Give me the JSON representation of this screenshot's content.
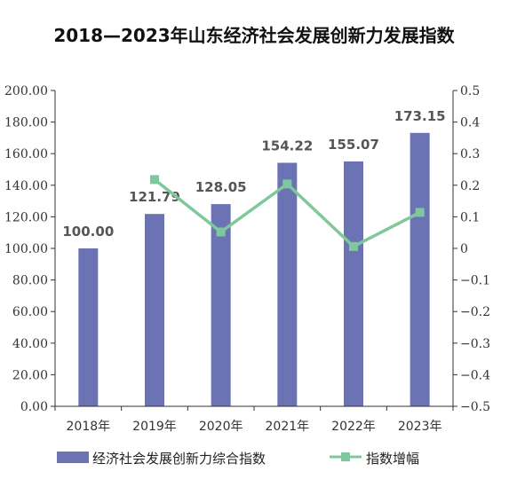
{
  "chart_data": {
    "type": "bar",
    "title": "2018—2023年山东经济社会发展创新力发展指数",
    "categories": [
      "2018年",
      "2019年",
      "2020年",
      "2021年",
      "2022年",
      "2023年"
    ],
    "series": [
      {
        "name": "经济社会发展创新力综合指数",
        "type": "bar",
        "axis": "left",
        "color": "#6b73b5",
        "values": [
          100.0,
          121.79,
          128.05,
          154.22,
          155.07,
          173.15
        ],
        "data_labels": [
          "100.00",
          "121.79",
          "128.05",
          "154.22",
          "155.07",
          "173.15"
        ]
      },
      {
        "name": "指数增幅",
        "type": "line",
        "axis": "right",
        "color": "#7fc79c",
        "values": [
          null,
          0.218,
          0.052,
          0.204,
          0.006,
          0.114
        ]
      }
    ],
    "y_left": {
      "range": [
        0,
        200
      ],
      "ticks": [
        "0.00",
        "20.00",
        "40.00",
        "60.00",
        "80.00",
        "100.00",
        "120.00",
        "140.00",
        "160.00",
        "180.00",
        "200.00"
      ]
    },
    "y_right": {
      "range": [
        -0.5,
        0.5
      ],
      "ticks": [
        "-0.5",
        "-0.4",
        "-0.3",
        "-0.2",
        "-0.1",
        "0",
        "0.1",
        "0.2",
        "0.3",
        "0.4",
        "0.5"
      ]
    },
    "grid": false,
    "legend_position": "bottom"
  }
}
